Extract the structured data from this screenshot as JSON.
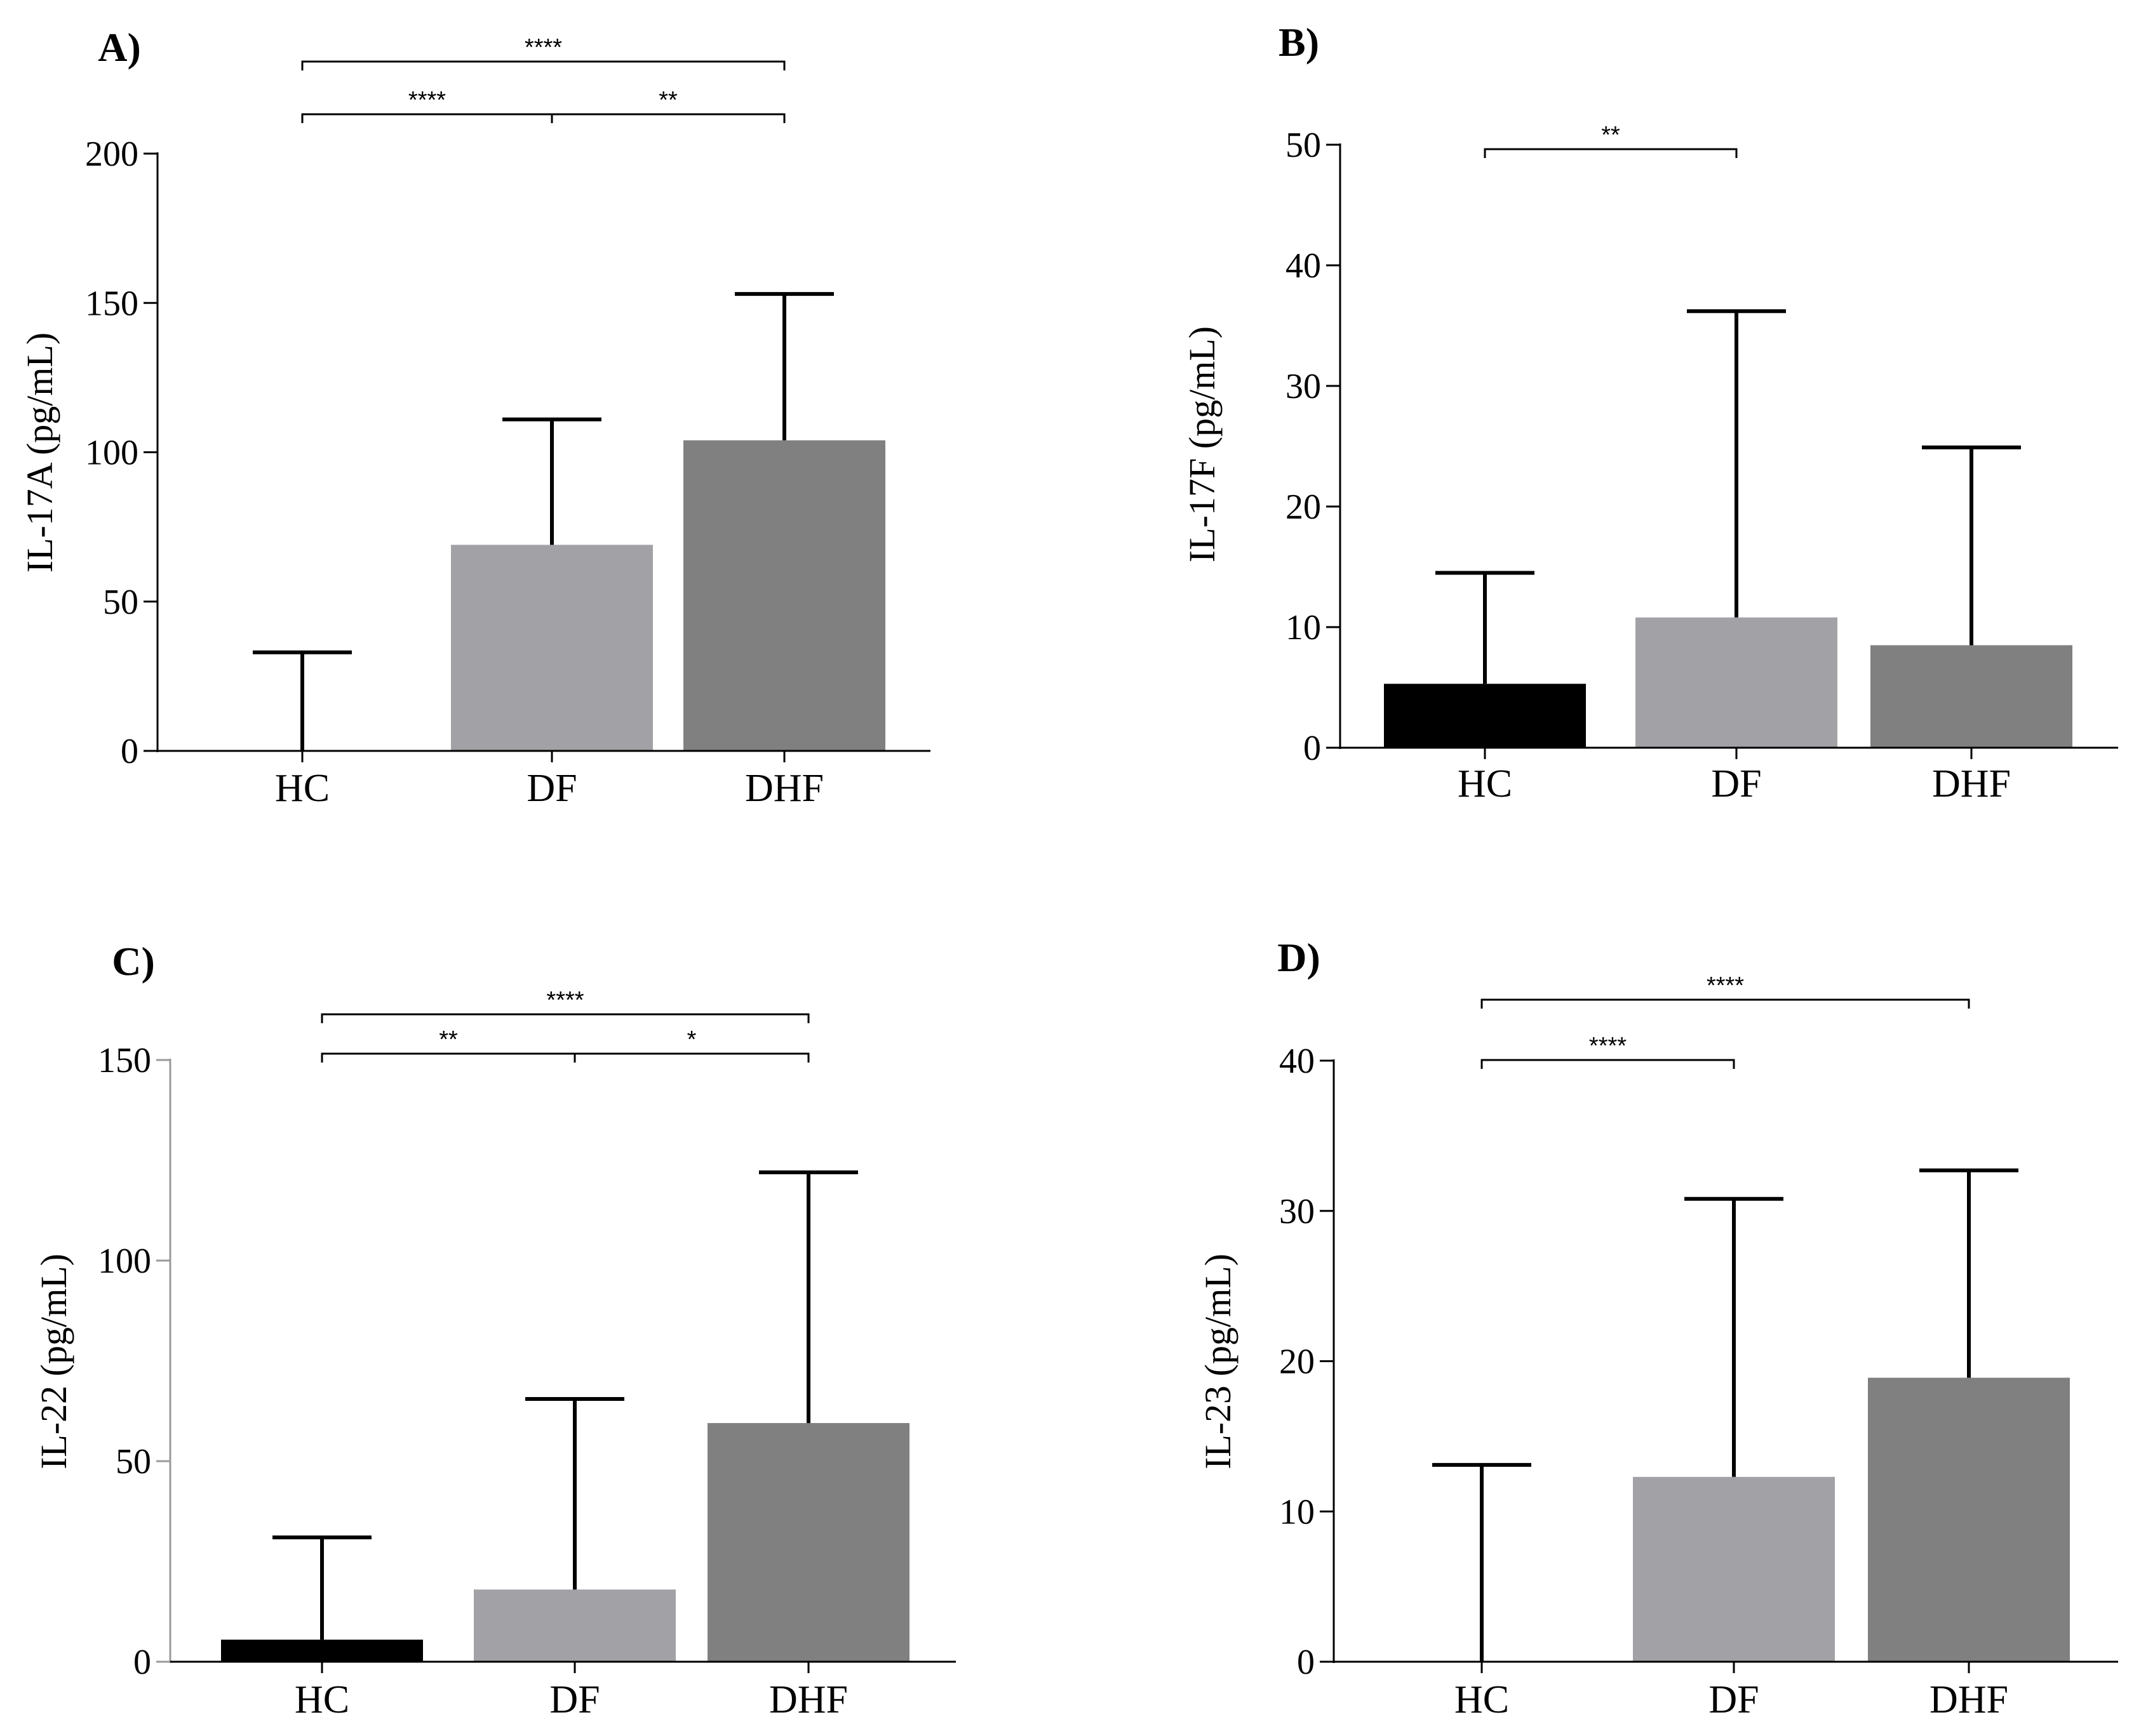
{
  "figure": {
    "colors": {
      "HC": "#000000",
      "DF": "#a2a2a6",
      "DHF": "#808080",
      "axis": "#000000",
      "axis_c": "#9a9a9a"
    }
  },
  "chart_data": [
    {
      "panel": "A)",
      "type": "bar",
      "title": "",
      "ylabel": "IL-17A (pg/mL)",
      "xlabel": "",
      "categories": [
        "HC",
        "DF",
        "DHF"
      ],
      "values": [
        0,
        69,
        104
      ],
      "error_upper": [
        33,
        111,
        153
      ],
      "ylim": [
        0,
        200
      ],
      "yticks": [
        "0",
        "50",
        "100",
        "150",
        "200"
      ],
      "significance": [
        {
          "from": 0,
          "to": 2,
          "label": "****",
          "level": 2
        },
        {
          "from": 0,
          "to": 1,
          "label": "****",
          "level": 1
        },
        {
          "from": 1,
          "to": 2,
          "label": "**",
          "level": 1
        }
      ]
    },
    {
      "panel": "B)",
      "type": "bar",
      "title": "",
      "ylabel": "IL-17F (pg/mL)",
      "xlabel": "",
      "categories": [
        "HC",
        "DF",
        "DHF"
      ],
      "values": [
        5.3,
        10.8,
        8.5
      ],
      "error_upper": [
        14.5,
        36.2,
        24.9
      ],
      "ylim": [
        0,
        50
      ],
      "yticks": [
        "0",
        "10",
        "20",
        "30",
        "40",
        "50"
      ],
      "significance": [
        {
          "from": 0,
          "to": 1,
          "label": "**",
          "level": 1
        }
      ]
    },
    {
      "panel": "C)",
      "type": "bar",
      "title": "",
      "ylabel": "IL-22 (pg/mL)",
      "xlabel": "",
      "categories": [
        "HC",
        "DF",
        "DHF"
      ],
      "values": [
        5.5,
        18,
        59.5
      ],
      "error_upper": [
        31,
        65.5,
        122
      ],
      "ylim": [
        0,
        150
      ],
      "yticks": [
        "0",
        "50",
        "100",
        "150"
      ],
      "significance": [
        {
          "from": 0,
          "to": 2,
          "label": "****",
          "level": 2
        },
        {
          "from": 0,
          "to": 1,
          "label": "**",
          "level": 1
        },
        {
          "from": 1,
          "to": 2,
          "label": "*",
          "level": 1
        }
      ]
    },
    {
      "panel": "D)",
      "type": "bar",
      "title": "",
      "ylabel": "IL-23 (pg/mL)",
      "xlabel": "",
      "categories": [
        "HC",
        "DF",
        "DHF"
      ],
      "values": [
        0,
        12.3,
        18.9
      ],
      "error_upper": [
        13.1,
        30.8,
        32.7
      ],
      "ylim": [
        0,
        40
      ],
      "yticks": [
        "0",
        "10",
        "20",
        "30",
        "40"
      ],
      "significance": [
        {
          "from": 0,
          "to": 2,
          "label": "****",
          "level": 2
        },
        {
          "from": 0,
          "to": 1,
          "label": "****",
          "level": 1
        }
      ]
    }
  ]
}
